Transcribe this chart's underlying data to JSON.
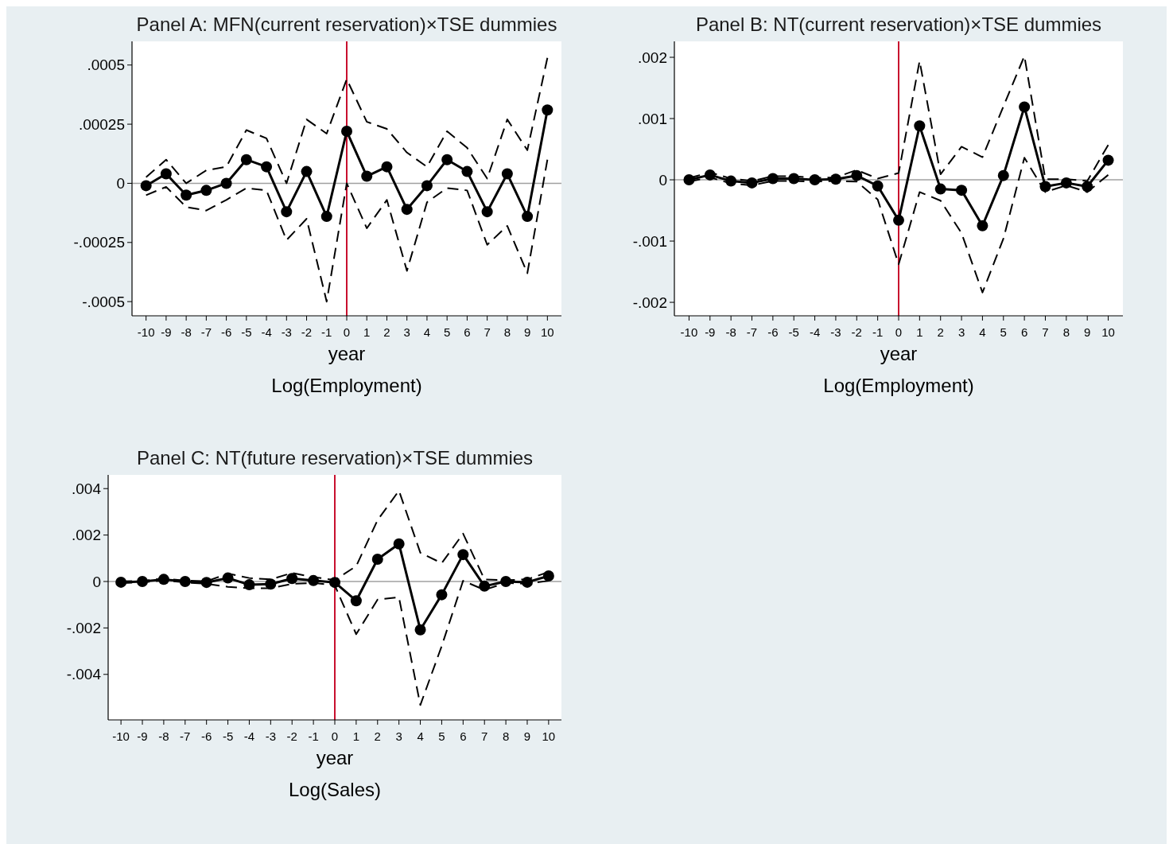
{
  "chart_data": [
    {
      "type": "line",
      "title": "Panel A: MFN(current reservation)×TSE dummies",
      "xlabel": "year",
      "annotations": [
        "Log(Employment)"
      ],
      "grid": false,
      "x": [
        -10,
        -9,
        -8,
        -7,
        -6,
        -5,
        -4,
        -3,
        -2,
        -1,
        0,
        1,
        2,
        3,
        4,
        5,
        6,
        7,
        8,
        9,
        10
      ],
      "xlim": [
        -10.7,
        10.7
      ],
      "xticks": [
        -10,
        -9,
        -8,
        -7,
        -6,
        -5,
        -4,
        -3,
        -2,
        -1,
        0,
        1,
        2,
        3,
        4,
        5,
        6,
        7,
        8,
        9,
        10
      ],
      "ylim": [
        -0.00056,
        0.0006
      ],
      "yticks": [
        {
          "value": -0.0005,
          "label": "-.0005"
        },
        {
          "value": -0.00025,
          "label": "-.00025"
        },
        {
          "value": 0,
          "label": "0"
        },
        {
          "value": 0.00025,
          "label": ".00025"
        },
        {
          "value": 0.0005,
          "label": ".0005"
        }
      ],
      "ref_lines": [
        {
          "axis": "y",
          "value": 0,
          "color": "#a0a0a0"
        },
        {
          "axis": "x",
          "value": 0,
          "color": "#c8102e"
        }
      ],
      "series": [
        {
          "color": "#000000",
          "marker": "circle",
          "line_style": "solid",
          "values": [
            -1e-05,
            4e-05,
            -5e-05,
            -3e-05,
            0,
            0.0001,
            7e-05,
            -0.00012,
            5e-05,
            -0.00014,
            0.00022,
            3e-05,
            7e-05,
            -0.00011,
            -1e-05,
            0.0001,
            5e-05,
            -0.00012,
            4e-05,
            -0.00014,
            0.00031
          ]
        },
        {
          "color": "#000000",
          "marker": "none",
          "line_style": "dashed",
          "values": [
            2.6e-05,
            0.0001,
            0,
            5.5e-05,
            7e-05,
            0.000225,
            0.00019,
            0,
            0.00027,
            0.00021,
            0.00044,
            0.00026,
            0.00023,
            0.00013,
            7e-05,
            0.00022,
            0.00015,
            2e-05,
            0.00027,
            0.00014,
            0.00053
          ]
        },
        {
          "color": "#000000",
          "marker": "none",
          "line_style": "dashed",
          "values": [
            -5e-05,
            -1.5e-05,
            -0.0001,
            -0.000115,
            -7e-05,
            -2e-05,
            -3e-05,
            -0.00024,
            -0.00015,
            -0.0005,
            0,
            -0.00019,
            -7e-05,
            -0.00037,
            -8e-05,
            -2e-05,
            -3e-05,
            -0.00026,
            -0.00018,
            -0.00038,
            0.0001
          ]
        }
      ]
    },
    {
      "type": "line",
      "title": "Panel B: NT(current reservation)×TSE dummies",
      "xlabel": "year",
      "annotations": [
        "Log(Employment)"
      ],
      "grid": false,
      "x": [
        -10,
        -9,
        -8,
        -7,
        -6,
        -5,
        -4,
        -3,
        -2,
        -1,
        0,
        1,
        2,
        3,
        4,
        5,
        6,
        7,
        8,
        9,
        10
      ],
      "xlim": [
        -10.7,
        10.7
      ],
      "xticks": [
        -10,
        -9,
        -8,
        -7,
        -6,
        -5,
        -4,
        -3,
        -2,
        -1,
        0,
        1,
        2,
        3,
        4,
        5,
        6,
        7,
        8,
        9,
        10
      ],
      "ylim": [
        -0.00222,
        0.00226
      ],
      "yticks": [
        {
          "value": -0.002,
          "label": "-.002"
        },
        {
          "value": -0.001,
          "label": "-.001"
        },
        {
          "value": 0,
          "label": "0"
        },
        {
          "value": 0.001,
          "label": ".001"
        },
        {
          "value": 0.002,
          "label": ".002"
        }
      ],
      "ref_lines": [
        {
          "axis": "y",
          "value": 0,
          "color": "#a0a0a0"
        },
        {
          "axis": "x",
          "value": 0,
          "color": "#c8102e"
        }
      ],
      "series": [
        {
          "color": "#000000",
          "marker": "circle",
          "line_style": "solid",
          "values": [
            0,
            8e-05,
            -2e-05,
            -5e-05,
            2e-05,
            2e-05,
            0,
            1e-05,
            7e-05,
            -0.0001,
            -0.00066,
            0.00088,
            -0.00015,
            -0.00017,
            -0.00075,
            7e-05,
            0.00119,
            -0.00011,
            -5e-05,
            -0.00011,
            0.00032
          ]
        },
        {
          "color": "#000000",
          "marker": "none",
          "line_style": "dashed",
          "values": [
            3e-05,
            0.00012,
            2e-05,
            -2e-05,
            6e-05,
            6e-05,
            3e-05,
            4e-05,
            0.00016,
            2e-05,
            0.00011,
            0.00194,
            9e-05,
            0.00054,
            0.00037,
            0.0012,
            0.00202,
            1e-05,
            1e-05,
            -2e-05,
            0.00057
          ]
        },
        {
          "color": "#000000",
          "marker": "none",
          "line_style": "dashed",
          "values": [
            -3e-05,
            4e-05,
            -6e-05,
            -9e-05,
            -2e-05,
            -2e-05,
            -3e-05,
            -2e-05,
            -3e-05,
            -0.00032,
            -0.00138,
            -0.0002,
            -0.00034,
            -0.00087,
            -0.00184,
            -0.00096,
            0.00036,
            -0.0002,
            -9e-05,
            -0.0002,
            8e-05
          ]
        }
      ]
    },
    {
      "type": "line",
      "title": "Panel C: NT(future reservation)×TSE dummies",
      "xlabel": "year",
      "annotations": [
        "Log(Sales)"
      ],
      "grid": false,
      "x": [
        -10,
        -9,
        -8,
        -7,
        -6,
        -5,
        -4,
        -3,
        -2,
        -1,
        0,
        1,
        2,
        3,
        4,
        5,
        6,
        7,
        8,
        9,
        10
      ],
      "xlim": [
        -10.6,
        10.6
      ],
      "xticks": [
        -10,
        -9,
        -8,
        -7,
        -6,
        -5,
        -4,
        -3,
        -2,
        -1,
        0,
        1,
        2,
        3,
        4,
        5,
        6,
        7,
        8,
        9,
        10
      ],
      "ylim": [
        -0.00596,
        0.00459
      ],
      "yticks": [
        {
          "value": -0.004,
          "label": "-.004"
        },
        {
          "value": -0.002,
          "label": "-.002"
        },
        {
          "value": 0,
          "label": "0"
        },
        {
          "value": 0.002,
          "label": ".002"
        },
        {
          "value": 0.004,
          "label": ".004"
        }
      ],
      "ref_lines": [
        {
          "axis": "y",
          "value": 0,
          "color": "#a0a0a0"
        },
        {
          "axis": "x",
          "value": 0,
          "color": "#c8102e"
        }
      ],
      "series": [
        {
          "color": "#000000",
          "marker": "circle",
          "line_style": "solid",
          "values": [
            -3e-05,
            0,
            9e-05,
            0,
            -4e-05,
            0.00015,
            -0.00014,
            -0.00011,
            0.00013,
            4e-05,
            -4e-05,
            -0.00083,
            0.00096,
            0.00162,
            -0.00208,
            -0.00057,
            0.00116,
            -0.0002,
            0,
            -3e-05,
            0.00024
          ]
        },
        {
          "color": "#000000",
          "marker": "none",
          "line_style": "dashed",
          "values": [
            1e-05,
            3e-05,
            0.00013,
            4e-05,
            1e-05,
            0.00034,
            0.00015,
            9e-05,
            0.00037,
            0.00019,
            6e-05,
            0.00066,
            0.00264,
            0.00391,
            0.00124,
            0.00079,
            0.00206,
            9e-05,
            6e-05,
            9e-05,
            0.00041
          ]
        },
        {
          "color": "#000000",
          "marker": "none",
          "line_style": "dashed",
          "values": [
            -7e-05,
            -4e-05,
            5e-05,
            -4e-05,
            -0.0001,
            -0.00023,
            -0.00029,
            -0.00029,
            -0.0001,
            -6e-05,
            -0.00017,
            -0.00227,
            -0.00078,
            -0.00068,
            -0.00532,
            -0.00278,
            3e-05,
            -0.00036,
            -6e-05,
            -0.0001,
            3e-05
          ]
        }
      ]
    }
  ]
}
